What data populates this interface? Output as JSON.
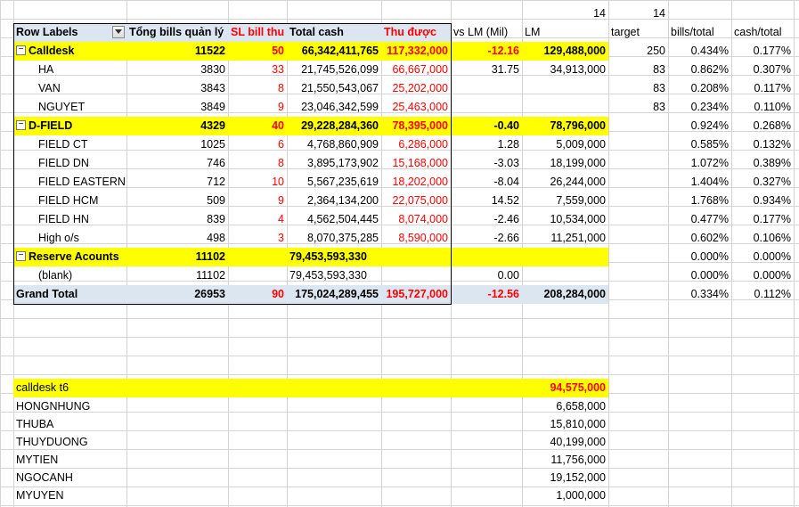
{
  "top_row": {
    "lm_month": "14",
    "target_month": "14"
  },
  "headers": {
    "row_labels": "Row Labels",
    "total_bills": "Tổng bills quản lý",
    "sl_bill_thu": "SL bill thu",
    "total_cash": "Total cash",
    "thu_duoc": "Thu được",
    "vs_lm": "vs LM (Mil)",
    "lm": "LM",
    "target": "target",
    "bills_total": "bills/total",
    "cash_total": "cash/total"
  },
  "groups": {
    "calldesk": {
      "label": "Calldesk",
      "total_bills": "11522",
      "sl_bill_thu": "50",
      "total_cash": "66,342,411,765",
      "thu_duoc": "117,332,000",
      "vs_lm": "-12.16",
      "lm": "129,488,000",
      "target": "250",
      "bills_total": "0.434%",
      "cash_total": "0.177%",
      "rows": [
        {
          "label": "HA",
          "total_bills": "3830",
          "sl_bill_thu": "33",
          "total_cash": "21,745,526,099",
          "thu_duoc": "66,667,000",
          "vs_lm": "31.75",
          "lm": "34,913,000",
          "target": "83",
          "bills_total": "0.862%",
          "cash_total": "0.307%"
        },
        {
          "label": "VAN",
          "total_bills": "3843",
          "sl_bill_thu": "8",
          "total_cash": "21,550,543,067",
          "thu_duoc": "25,202,000",
          "target": "83",
          "bills_total": "0.208%",
          "cash_total": "0.117%"
        },
        {
          "label": "NGUYET",
          "total_bills": "3849",
          "sl_bill_thu": "9",
          "total_cash": "23,046,342,599",
          "thu_duoc": "25,463,000",
          "target": "83",
          "bills_total": "0.234%",
          "cash_total": "0.110%"
        }
      ]
    },
    "dfield": {
      "label": "D-FIELD",
      "total_bills": "4329",
      "sl_bill_thu": "40",
      "total_cash": "29,228,284,360",
      "thu_duoc": "78,395,000",
      "vs_lm": "-0.40",
      "lm": "78,796,000",
      "bills_total": "0.924%",
      "cash_total": "0.268%",
      "rows": [
        {
          "label": "FIELD CT",
          "total_bills": "1025",
          "sl_bill_thu": "6",
          "total_cash": "4,768,860,909",
          "thu_duoc": "6,286,000",
          "vs_lm": "1.28",
          "lm": "5,009,000",
          "bills_total": "0.585%",
          "cash_total": "0.132%"
        },
        {
          "label": "FIELD DN",
          "total_bills": "746",
          "sl_bill_thu": "8",
          "total_cash": "3,895,173,902",
          "thu_duoc": "15,168,000",
          "vs_lm": "-3.03",
          "lm": "18,199,000",
          "bills_total": "1.072%",
          "cash_total": "0.389%"
        },
        {
          "label": "FIELD EASTERN",
          "total_bills": "712",
          "sl_bill_thu": "10",
          "total_cash": "5,567,235,619",
          "thu_duoc": "18,202,000",
          "vs_lm": "-8.04",
          "lm": "26,244,000",
          "bills_total": "1.404%",
          "cash_total": "0.327%"
        },
        {
          "label": "FIELD HCM",
          "total_bills": "509",
          "sl_bill_thu": "9",
          "total_cash": "2,364,134,200",
          "thu_duoc": "22,075,000",
          "vs_lm": "14.52",
          "lm": "7,559,000",
          "bills_total": "1.768%",
          "cash_total": "0.934%"
        },
        {
          "label": "FIELD HN",
          "total_bills": "839",
          "sl_bill_thu": "4",
          "total_cash": "4,562,504,445",
          "thu_duoc": "8,074,000",
          "vs_lm": "-2.46",
          "lm": "10,534,000",
          "bills_total": "0.477%",
          "cash_total": "0.177%"
        },
        {
          "label": "High o/s",
          "total_bills": "498",
          "sl_bill_thu": "3",
          "total_cash": "8,070,375,285",
          "thu_duoc": "8,590,000",
          "vs_lm": "-2.66",
          "lm": "11,251,000",
          "bills_total": "0.602%",
          "cash_total": "0.106%"
        }
      ]
    },
    "reserve": {
      "label": "Reserve Acounts",
      "total_bills": "11102",
      "total_cash": "79,453,593,330",
      "bills_total": "0.000%",
      "cash_total": "0.000%",
      "rows": [
        {
          "label": "(blank)",
          "total_bills": "11102",
          "total_cash": "79,453,593,330",
          "vs_lm": "0.00",
          "bills_total": "0.000%",
          "cash_total": "0.000%"
        }
      ]
    }
  },
  "grand_total": {
    "label": "Grand Total",
    "total_bills": "26953",
    "sl_bill_thu": "90",
    "total_cash": "175,024,289,455",
    "thu_duoc": "195,727,000",
    "vs_lm": "-12.56",
    "lm": "208,284,000",
    "bills_total": "0.334%",
    "cash_total": "0.112%"
  },
  "calldesk_t6": {
    "label": "calldesk t6",
    "total": "94,575,000",
    "rows": [
      {
        "name": "HONGNHUNG",
        "value": "6,658,000"
      },
      {
        "name": "THUBA",
        "value": "15,810,000"
      },
      {
        "name": "THUYDUONG",
        "value": "40,199,000"
      },
      {
        "name": "MYTIEN",
        "value": "11,756,000"
      },
      {
        "name": "NGOCANH",
        "value": "19,152,000"
      },
      {
        "name": "MYUYEN",
        "value": "1,000,000"
      }
    ]
  }
}
